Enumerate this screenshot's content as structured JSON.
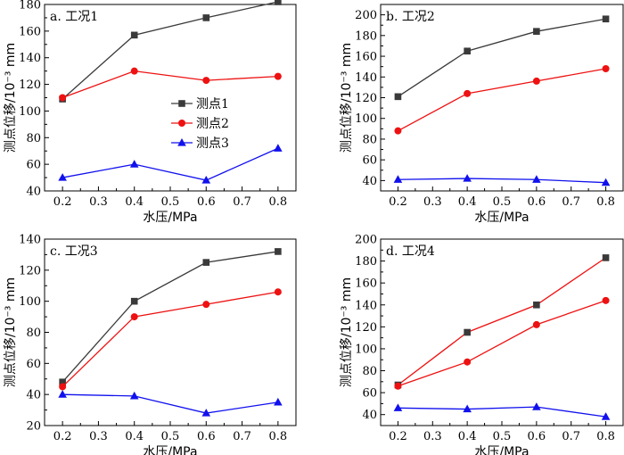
{
  "chart_data": [
    {
      "type": "line",
      "title": "a. 工况1",
      "xlabel": "水压/MPa",
      "ylabel": "测点位移/10⁻³ mm",
      "x": [
        0.2,
        0.4,
        0.6,
        0.8
      ],
      "xlim": [
        0.15,
        0.85
      ],
      "xticks": [
        "0.2",
        "0.3",
        "0.4",
        "0.5",
        "0.6",
        "0.7",
        "0.8"
      ],
      "ylim": [
        40,
        180
      ],
      "yticks": [
        "40",
        "60",
        "80",
        "100",
        "120",
        "140",
        "160",
        "180"
      ],
      "series": [
        {
          "name": "测点1",
          "values": [
            109,
            157,
            170,
            182
          ],
          "color": "#3a3a3a",
          "marker": "square"
        },
        {
          "name": "测点2",
          "values": [
            110,
            130,
            123,
            126
          ],
          "color": "#ee1111",
          "marker": "circle"
        },
        {
          "name": "测点3",
          "values": [
            50,
            60,
            48,
            72
          ],
          "color": "#1111ee",
          "marker": "triangle"
        }
      ],
      "legend": "center-right",
      "grid": false
    },
    {
      "type": "line",
      "title": "b. 工况2",
      "xlabel": "水压/MPa",
      "ylabel": "测点位移/10⁻³ mm",
      "x": [
        0.2,
        0.4,
        0.6,
        0.8
      ],
      "xlim": [
        0.15,
        0.85
      ],
      "xticks": [
        "0.2",
        "0.3",
        "0.4",
        "0.5",
        "0.6",
        "0.7",
        "0.8"
      ],
      "ylim": [
        30,
        210
      ],
      "yticks": [
        "40",
        "60",
        "80",
        "100",
        "120",
        "140",
        "160",
        "180",
        "200"
      ],
      "series": [
        {
          "name": "测点1",
          "values": [
            121,
            165,
            184,
            196
          ],
          "color": "#3a3a3a",
          "marker": "square"
        },
        {
          "name": "测点2",
          "values": [
            88,
            124,
            136,
            148
          ],
          "color": "#ee1111",
          "marker": "circle"
        },
        {
          "name": "测点3",
          "values": [
            41,
            42,
            41,
            38
          ],
          "color": "#1111ee",
          "marker": "triangle"
        }
      ],
      "grid": false
    },
    {
      "type": "line",
      "title": "c. 工况3",
      "xlabel": "水压/MPa",
      "ylabel": "测点位移/10⁻³ mm",
      "x": [
        0.2,
        0.4,
        0.6,
        0.8
      ],
      "xlim": [
        0.15,
        0.85
      ],
      "xticks": [
        "0.2",
        "0.3",
        "0.4",
        "0.5",
        "0.6",
        "0.7",
        "0.8"
      ],
      "ylim": [
        20,
        140
      ],
      "yticks": [
        "20",
        "40",
        "60",
        "80",
        "100",
        "120",
        "140"
      ],
      "series": [
        {
          "name": "测点1",
          "values": [
            48,
            100,
            125,
            132
          ],
          "color": "#3a3a3a",
          "marker": "square"
        },
        {
          "name": "测点2",
          "values": [
            45,
            90,
            98,
            106
          ],
          "color": "#ee1111",
          "marker": "circle"
        },
        {
          "name": "测点3",
          "values": [
            40,
            39,
            28,
            35
          ],
          "color": "#1111ee",
          "marker": "triangle"
        }
      ],
      "grid": false
    },
    {
      "type": "line",
      "title": "d. 工况4",
      "xlabel": "水压/MPa",
      "ylabel": "测点位移/10⁻³ mm",
      "x": [
        0.2,
        0.4,
        0.6,
        0.8
      ],
      "xlim": [
        0.15,
        0.85
      ],
      "xticks": [
        "0.2",
        "0.3",
        "0.4",
        "0.5",
        "0.6",
        "0.7",
        "0.8"
      ],
      "ylim": [
        30,
        200
      ],
      "yticks": [
        "40",
        "60",
        "80",
        "100",
        "120",
        "140",
        "160",
        "180",
        "200"
      ],
      "series": [
        {
          "name": "测点1",
          "values": [
            67,
            115,
            140,
            183
          ],
          "color": "#ee1111",
          "marker": "square",
          "marker_color": "#3a3a3a"
        },
        {
          "name": "测点2",
          "values": [
            66,
            88,
            122,
            144
          ],
          "color": "#ee1111",
          "marker": "circle"
        },
        {
          "name": "测点3",
          "values": [
            46,
            45,
            47,
            38
          ],
          "color": "#1111ee",
          "marker": "triangle"
        }
      ],
      "grid": false
    }
  ]
}
